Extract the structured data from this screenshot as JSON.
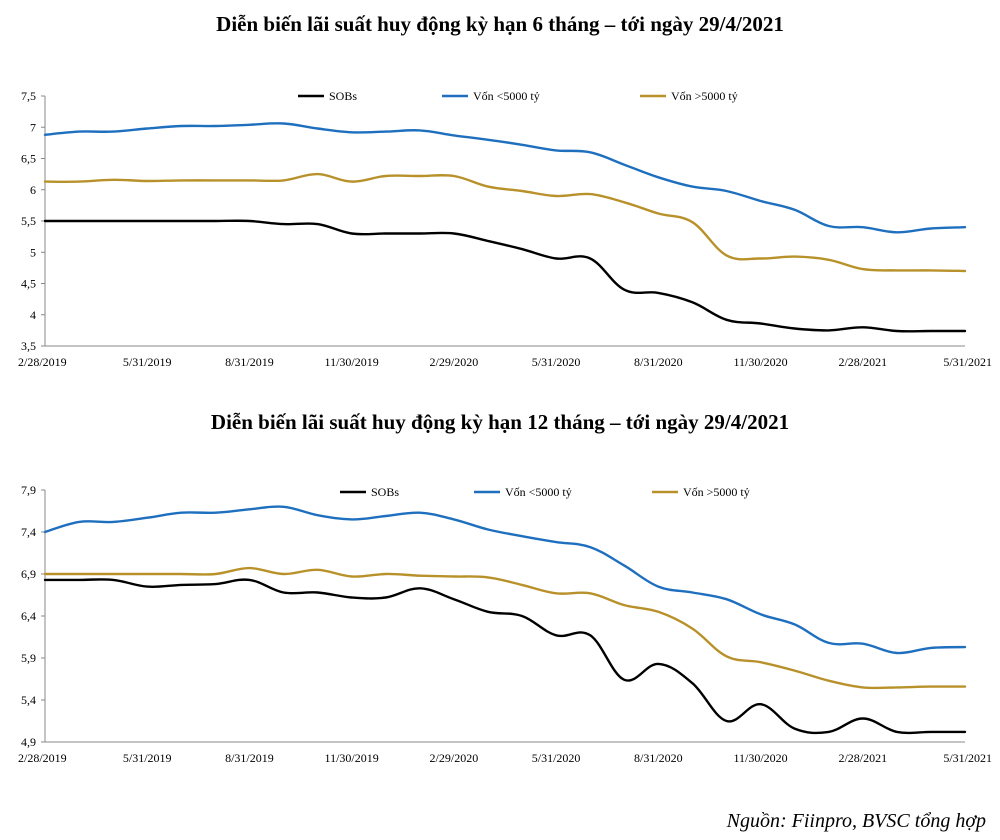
{
  "source": "Nguồn: Fiinpro, BVSC tổng hợp",
  "chart_data": [
    {
      "type": "line",
      "title": "Diễn biến lãi suất huy động kỳ hạn 6 tháng – tới ngày 29/4/2021",
      "xlabel": "",
      "ylabel": "",
      "ylim": [
        3.5,
        7.5
      ],
      "yticks": [
        "7,5",
        "7",
        "6,5",
        "6",
        "5,5",
        "5",
        "4,5",
        "4",
        "3,5"
      ],
      "ytick_values": [
        7.5,
        7,
        6.5,
        6,
        5.5,
        5,
        4.5,
        4,
        3.5
      ],
      "xticks": [
        "2/28/2019",
        "5/31/2019",
        "8/31/2019",
        "11/30/2019",
        "2/29/2020",
        "5/31/2020",
        "8/31/2020",
        "11/30/2020",
        "2/28/2021",
        "5/31/2021"
      ],
      "x_months": [
        "2019-02",
        "2019-03",
        "2019-04",
        "2019-05",
        "2019-06",
        "2019-07",
        "2019-08",
        "2019-09",
        "2019-10",
        "2019-11",
        "2019-12",
        "2020-01",
        "2020-02",
        "2020-03",
        "2020-04",
        "2020-05",
        "2020-06",
        "2020-07",
        "2020-08",
        "2020-09",
        "2020-10",
        "2020-11",
        "2020-12",
        "2021-01",
        "2021-02",
        "2021-03",
        "2021-04",
        "2021-05"
      ],
      "grid": false,
      "legend": "top-center",
      "series": [
        {
          "name": "SOBs",
          "color": "#000000",
          "values": [
            5.5,
            5.5,
            5.5,
            5.5,
            5.5,
            5.5,
            5.5,
            5.45,
            5.45,
            5.3,
            5.3,
            5.3,
            5.3,
            5.18,
            5.05,
            4.9,
            4.9,
            4.4,
            4.35,
            4.2,
            3.92,
            3.86,
            3.78,
            3.75,
            3.8,
            3.74,
            3.74,
            3.74
          ]
        },
        {
          "name": "Vốn <5000 tỷ",
          "color": "#1f6fbf",
          "values": [
            6.88,
            6.93,
            6.93,
            6.98,
            7.02,
            7.02,
            7.04,
            7.06,
            6.98,
            6.92,
            6.93,
            6.95,
            6.87,
            6.8,
            6.72,
            6.63,
            6.6,
            6.4,
            6.2,
            6.05,
            5.98,
            5.82,
            5.68,
            5.42,
            5.4,
            5.32,
            5.38,
            5.4
          ]
        },
        {
          "name": "Vốn >5000 tỷ",
          "color": "#b8912a",
          "values": [
            6.13,
            6.13,
            6.16,
            6.14,
            6.15,
            6.15,
            6.15,
            6.15,
            6.25,
            6.13,
            6.22,
            6.22,
            6.22,
            6.05,
            5.98,
            5.9,
            5.93,
            5.8,
            5.62,
            5.48,
            4.95,
            4.9,
            4.93,
            4.88,
            4.73,
            4.71,
            4.71,
            4.7
          ]
        }
      ]
    },
    {
      "type": "line",
      "title": "Diễn biến lãi suất huy động kỳ hạn 12 tháng – tới ngày 29/4/2021",
      "xlabel": "",
      "ylabel": "",
      "ylim": [
        4.9,
        7.9
      ],
      "yticks": [
        "7,9",
        "7,4",
        "6,9",
        "6,4",
        "5,9",
        "5,4",
        "4,9"
      ],
      "ytick_values": [
        7.9,
        7.4,
        6.9,
        6.4,
        5.9,
        5.4,
        4.9
      ],
      "xticks": [
        "2/28/2019",
        "5/31/2019",
        "8/31/2019",
        "11/30/2019",
        "2/29/2020",
        "5/31/2020",
        "8/31/2020",
        "11/30/2020",
        "2/28/2021",
        "5/31/2021"
      ],
      "x_months": [
        "2019-02",
        "2019-03",
        "2019-04",
        "2019-05",
        "2019-06",
        "2019-07",
        "2019-08",
        "2019-09",
        "2019-10",
        "2019-11",
        "2019-12",
        "2020-01",
        "2020-02",
        "2020-03",
        "2020-04",
        "2020-05",
        "2020-06",
        "2020-07",
        "2020-08",
        "2020-09",
        "2020-10",
        "2020-11",
        "2020-12",
        "2021-01",
        "2021-02",
        "2021-03",
        "2021-04",
        "2021-05"
      ],
      "grid": false,
      "legend": "top-center",
      "series": [
        {
          "name": "SOBs",
          "color": "#000000",
          "values": [
            6.83,
            6.83,
            6.83,
            6.75,
            6.77,
            6.78,
            6.83,
            6.68,
            6.68,
            6.62,
            6.62,
            6.73,
            6.6,
            6.45,
            6.4,
            6.17,
            6.17,
            5.64,
            5.83,
            5.6,
            5.15,
            5.35,
            5.06,
            5.02,
            5.18,
            5.02,
            5.02,
            5.02
          ]
        },
        {
          "name": "Vốn <5000 tỷ",
          "color": "#1f6fbf",
          "values": [
            7.4,
            7.52,
            7.52,
            7.57,
            7.63,
            7.63,
            7.67,
            7.7,
            7.6,
            7.55,
            7.59,
            7.63,
            7.55,
            7.43,
            7.35,
            7.28,
            7.22,
            7.0,
            6.75,
            6.68,
            6.6,
            6.42,
            6.3,
            6.08,
            6.07,
            5.96,
            6.02,
            6.03
          ]
        },
        {
          "name": "Vốn >5000 tỷ",
          "color": "#b8912a",
          "values": [
            6.9,
            6.9,
            6.9,
            6.9,
            6.9,
            6.9,
            6.97,
            6.9,
            6.95,
            6.87,
            6.9,
            6.88,
            6.87,
            6.86,
            6.77,
            6.67,
            6.67,
            6.53,
            6.45,
            6.25,
            5.92,
            5.85,
            5.75,
            5.63,
            5.55,
            5.55,
            5.56,
            5.56
          ]
        }
      ]
    }
  ]
}
